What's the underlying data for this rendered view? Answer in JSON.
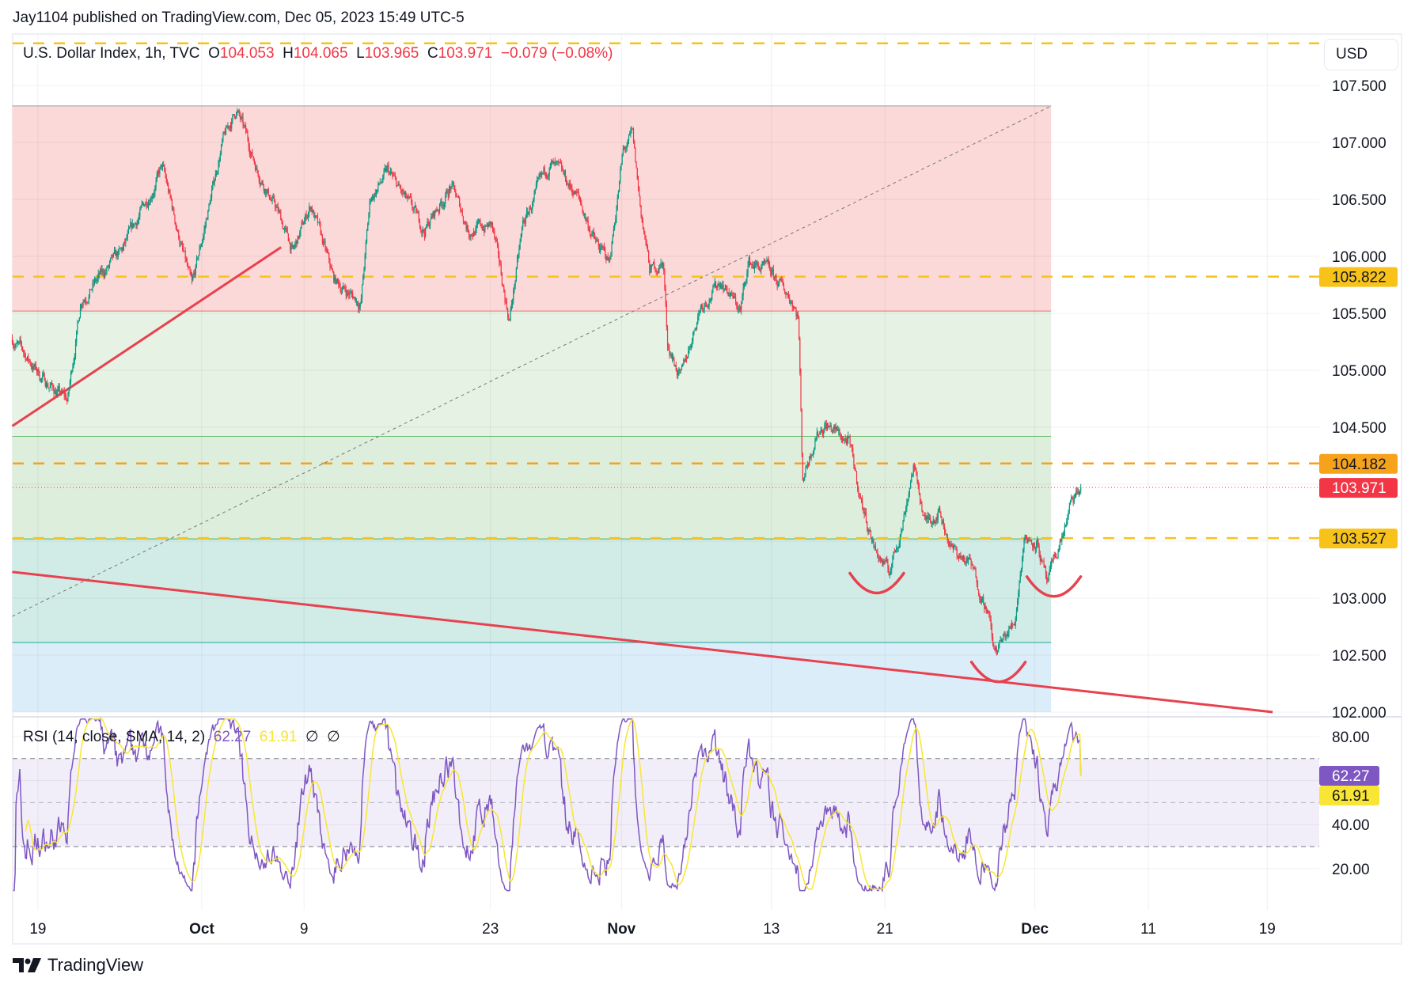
{
  "header": {
    "published": "Jay1104 published on TradingView.com, Dec 05, 2023 15:49 UTC-5"
  },
  "legend": {
    "symbol": "U.S. Dollar Index, 1h, TVC",
    "o_label": "O",
    "o": "104.053",
    "h_label": "H",
    "h": "104.065",
    "l_label": "L",
    "l": "103.965",
    "c_label": "C",
    "c": "103.971",
    "change": "−0.079 (−0.08%)"
  },
  "rsi_legend": {
    "title": "RSI (14, close, SMA, 14, 2)",
    "rsi": "62.27",
    "sma": "61.91",
    "na1": "∅",
    "na2": "∅"
  },
  "currency": "USD",
  "brand": "TradingView",
  "colors": {
    "up": "#089981",
    "down": "#f23645",
    "orange": "#f7a21b",
    "yellow": "#f7c31b",
    "rsi": "#7e57c2",
    "rsi_sma": "#f9e534",
    "trend": "#e8414f"
  },
  "chart_data": {
    "type": "candlestick",
    "title": "U.S. Dollar Index, 1h, TVC",
    "x_unit": "days since Sep 19, 2023",
    "price_ylim": [
      102.0,
      107.95
    ],
    "price_ticks": [
      "107.500",
      "107.000",
      "106.500",
      "106.000",
      "105.500",
      "105.000",
      "104.500",
      "104.000",
      "103.500",
      "103.000",
      "102.500",
      "102.000"
    ],
    "time_ticks": [
      {
        "label": "19",
        "x": 0,
        "bold": false
      },
      {
        "label": "Oct",
        "x": 12.13,
        "bold": true
      },
      {
        "label": "9",
        "x": 19.7,
        "bold": false
      },
      {
        "label": "23",
        "x": 33.5,
        "bold": false
      },
      {
        "label": "Nov",
        "x": 43.2,
        "bold": true
      },
      {
        "label": "13",
        "x": 54.3,
        "bold": false
      },
      {
        "label": "21",
        "x": 62.7,
        "bold": false
      },
      {
        "label": "Dec",
        "x": 73.8,
        "bold": true
      },
      {
        "label": "11",
        "x": 82.2,
        "bold": false
      },
      {
        "label": "19",
        "x": 91.0,
        "bold": false
      }
    ],
    "price_path": [
      [
        -1.9,
        105.28
      ],
      [
        0.4,
        104.92
      ],
      [
        2.2,
        104.73
      ],
      [
        3.2,
        105.63
      ],
      [
        6.2,
        106.03
      ],
      [
        9.2,
        106.78
      ],
      [
        11.4,
        105.71
      ],
      [
        13.6,
        106.98
      ],
      [
        14.7,
        107.29
      ],
      [
        16.2,
        106.78
      ],
      [
        17.9,
        106.35
      ],
      [
        18.9,
        106.03
      ],
      [
        20.2,
        106.46
      ],
      [
        21.9,
        105.79
      ],
      [
        23.9,
        105.59
      ],
      [
        24.6,
        106.5
      ],
      [
        25.9,
        106.74
      ],
      [
        28.6,
        106.23
      ],
      [
        30.6,
        106.62
      ],
      [
        31.9,
        106.23
      ],
      [
        33.6,
        106.27
      ],
      [
        34.9,
        105.44
      ],
      [
        35.9,
        106.27
      ],
      [
        37.9,
        106.82
      ],
      [
        39.9,
        106.54
      ],
      [
        41.3,
        106.11
      ],
      [
        42.3,
        105.95
      ],
      [
        43.3,
        106.9
      ],
      [
        44.0,
        107.06
      ],
      [
        44.6,
        106.42
      ],
      [
        45.3,
        105.87
      ],
      [
        46.3,
        105.95
      ],
      [
        46.6,
        105.24
      ],
      [
        47.6,
        104.92
      ],
      [
        49.0,
        105.56
      ],
      [
        50.6,
        105.79
      ],
      [
        52.0,
        105.52
      ],
      [
        52.6,
        105.95
      ],
      [
        54.0,
        105.87
      ],
      [
        55.8,
        105.63
      ],
      [
        56.3,
        105.48
      ],
      [
        56.6,
        104.05
      ],
      [
        57.6,
        104.45
      ],
      [
        58.3,
        104.53
      ],
      [
        60.0,
        104.37
      ],
      [
        61.0,
        103.82
      ],
      [
        62.0,
        103.42
      ],
      [
        63.0,
        103.22
      ],
      [
        64.0,
        103.66
      ],
      [
        64.8,
        104.17
      ],
      [
        65.7,
        103.66
      ],
      [
        66.7,
        103.78
      ],
      [
        67.7,
        103.42
      ],
      [
        69.0,
        103.3
      ],
      [
        70.3,
        102.91
      ],
      [
        70.8,
        102.51
      ],
      [
        72.3,
        102.79
      ],
      [
        73.0,
        103.54
      ],
      [
        74.0,
        103.5
      ],
      [
        74.7,
        103.1
      ],
      [
        75.7,
        103.5
      ],
      [
        76.4,
        103.78
      ],
      [
        77.2,
        103.971
      ]
    ],
    "fib_zones": [
      {
        "from": 105.52,
        "to": 107.32,
        "color": "#fcd9d9",
        "line": "#9e9e9e"
      },
      {
        "from": 104.42,
        "to": 105.52,
        "color": "#e6f3e4",
        "line": "#e57373"
      },
      {
        "from": 103.52,
        "to": 104.42,
        "color": "#ddeedd",
        "line": "#66bb6a"
      },
      {
        "from": 102.61,
        "to": 103.52,
        "color": "#d1ebe6",
        "line": "#4caf50"
      },
      {
        "from": 102.0,
        "to": 102.61,
        "color": "#dcedfa",
        "line": "#26a69a"
      }
    ],
    "fib_x_range": [
      -1.9,
      75.0
    ],
    "horizontal_levels": [
      {
        "price": 107.87,
        "label": null,
        "color": "#f7c31b"
      },
      {
        "price": 105.822,
        "label": "105.822",
        "color": "#f7c31b"
      },
      {
        "price": 104.182,
        "label": "104.182",
        "color": "#f7a21b"
      },
      {
        "price": 103.527,
        "label": "103.527",
        "color": "#f7c31b"
      }
    ],
    "last_price": {
      "price": 103.971,
      "label": "103.971"
    },
    "trendlines": [
      {
        "from": [
          -1.9,
          104.51
        ],
        "to": [
          18.0,
          106.08
        ],
        "style": "solid"
      },
      {
        "from": [
          -1.9,
          103.23
        ],
        "to": [
          91.4,
          102.0
        ],
        "style": "solid"
      },
      {
        "from": [
          -1.9,
          102.84
        ],
        "to": [
          75.0,
          107.32
        ],
        "style": "dashed"
      }
    ],
    "arcs": [
      {
        "center": [
          62.1,
          103.08
        ]
      },
      {
        "center": [
          75.2,
          103.05
        ]
      },
      {
        "center": [
          71.1,
          102.3
        ]
      }
    ],
    "rsi": {
      "period": 14,
      "source": "close",
      "sma_length": 14,
      "last": 62.27,
      "sma_last": 61.91,
      "ylim": [
        10,
        88
      ],
      "bands": [
        30,
        70
      ],
      "ticks": [
        "80.00",
        "40.00",
        "20.00"
      ],
      "tick_values": [
        80,
        40,
        20
      ]
    }
  }
}
